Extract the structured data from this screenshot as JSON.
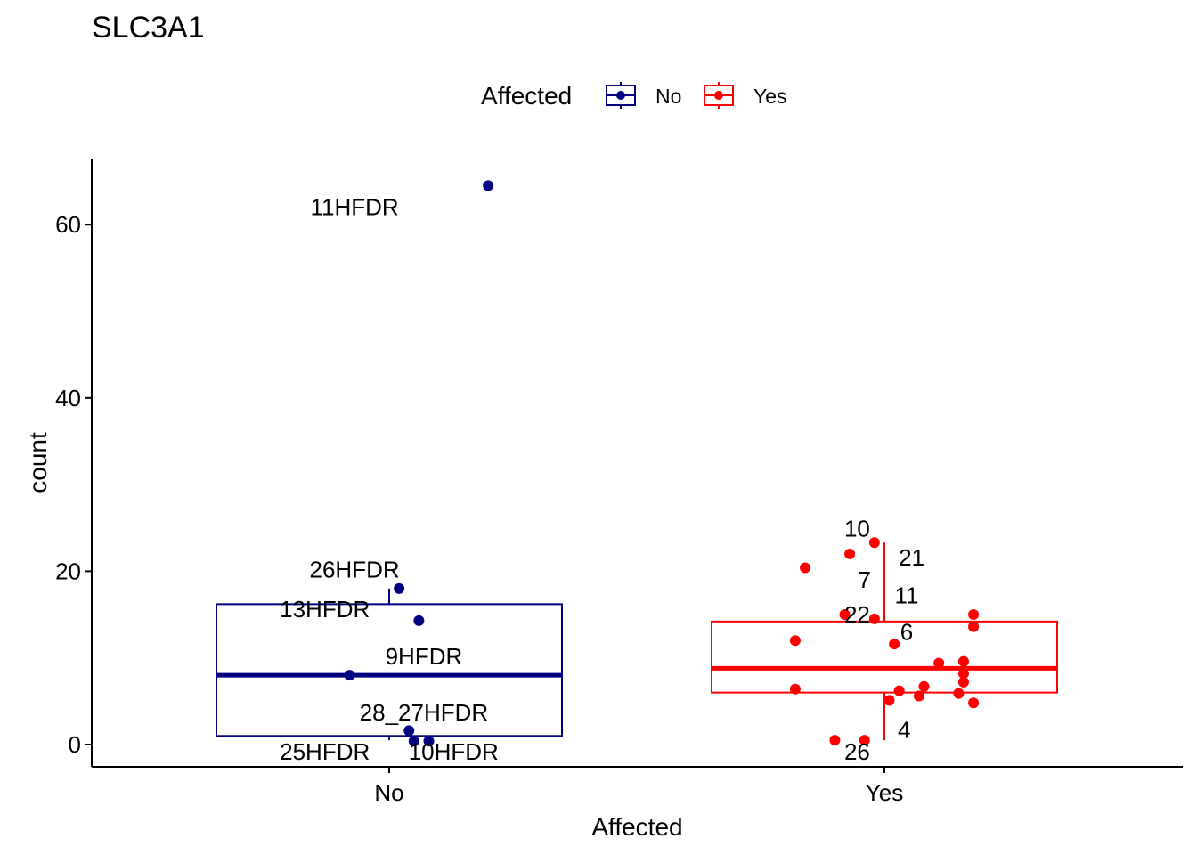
{
  "chart_data": {
    "type": "box",
    "title": "SLC3A1",
    "xlabel": "Affected",
    "ylabel": "count",
    "categories": [
      "No",
      "Yes"
    ],
    "ylim": [
      -2.5,
      67.5
    ],
    "yticks": [
      0,
      20,
      40,
      60
    ],
    "legend": {
      "title": "Affected",
      "position": "top",
      "entries": [
        {
          "label": "No",
          "color": "#000080"
        },
        {
          "label": "Yes",
          "color": "#ff0000"
        }
      ]
    },
    "boxes": [
      {
        "category": "No",
        "color": "#000080",
        "min": 0.5,
        "q1": 1.0,
        "median": 8.0,
        "q3": 16.2,
        "max": 18.0
      },
      {
        "category": "Yes",
        "color": "#ff0000",
        "min": 0.5,
        "q1": 6.0,
        "median": 8.8,
        "q3": 14.2,
        "max": 23.3
      }
    ],
    "points": [
      {
        "group": "No",
        "jitter": 0.2,
        "y": 64.5
      },
      {
        "group": "No",
        "jitter": 0.02,
        "y": 18.0
      },
      {
        "group": "No",
        "jitter": 0.06,
        "y": 14.3
      },
      {
        "group": "No",
        "jitter": -0.08,
        "y": 8.0
      },
      {
        "group": "No",
        "jitter": 0.04,
        "y": 1.6
      },
      {
        "group": "No",
        "jitter": 0.05,
        "y": 0.4
      },
      {
        "group": "No",
        "jitter": 0.08,
        "y": 0.4
      },
      {
        "group": "Yes",
        "jitter": -0.02,
        "y": 23.3
      },
      {
        "group": "Yes",
        "jitter": -0.07,
        "y": 22.0
      },
      {
        "group": "Yes",
        "jitter": -0.16,
        "y": 20.4
      },
      {
        "group": "Yes",
        "jitter": -0.08,
        "y": 15.0
      },
      {
        "group": "Yes",
        "jitter": -0.02,
        "y": 14.5
      },
      {
        "group": "Yes",
        "jitter": 0.18,
        "y": 15.0
      },
      {
        "group": "Yes",
        "jitter": 0.18,
        "y": 13.6
      },
      {
        "group": "Yes",
        "jitter": -0.18,
        "y": 12.0
      },
      {
        "group": "Yes",
        "jitter": 0.02,
        "y": 11.6
      },
      {
        "group": "Yes",
        "jitter": 0.11,
        "y": 9.4
      },
      {
        "group": "Yes",
        "jitter": 0.16,
        "y": 9.6
      },
      {
        "group": "Yes",
        "jitter": 0.16,
        "y": 8.2
      },
      {
        "group": "Yes",
        "jitter": 0.16,
        "y": 7.2
      },
      {
        "group": "Yes",
        "jitter": 0.08,
        "y": 6.7
      },
      {
        "group": "Yes",
        "jitter": -0.18,
        "y": 6.4
      },
      {
        "group": "Yes",
        "jitter": 0.03,
        "y": 6.2
      },
      {
        "group": "Yes",
        "jitter": 0.07,
        "y": 5.6
      },
      {
        "group": "Yes",
        "jitter": 0.15,
        "y": 5.9
      },
      {
        "group": "Yes",
        "jitter": 0.01,
        "y": 5.1
      },
      {
        "group": "Yes",
        "jitter": 0.18,
        "y": 4.8
      },
      {
        "group": "Yes",
        "jitter": -0.1,
        "y": 0.5
      },
      {
        "group": "Yes",
        "jitter": -0.04,
        "y": 0.5
      }
    ],
    "labels": [
      {
        "text": "11HFDR",
        "group": "No",
        "dx": -0.07,
        "y": 62.0
      },
      {
        "text": "26HFDR",
        "group": "No",
        "dx": -0.07,
        "y": 20.2
      },
      {
        "text": "13HFDR",
        "group": "No",
        "dx": -0.13,
        "y": 15.6
      },
      {
        "text": "9HFDR",
        "group": "No",
        "dx": 0.07,
        "y": 10.2
      },
      {
        "text": "28_27HFDR",
        "group": "No",
        "dx": 0.07,
        "y": 3.7
      },
      {
        "text": "25HFDR",
        "group": "No",
        "dx": -0.13,
        "y": -0.8
      },
      {
        "text": "10HFDR",
        "group": "No",
        "dx": 0.13,
        "y": -0.8
      },
      {
        "text": "10",
        "group": "Yes",
        "dx": -0.055,
        "y": 24.9
      },
      {
        "text": "21",
        "group": "Yes",
        "dx": 0.055,
        "y": 21.6
      },
      {
        "text": "7",
        "group": "Yes",
        "dx": -0.04,
        "y": 19.0
      },
      {
        "text": "11",
        "group": "Yes",
        "dx": 0.045,
        "y": 17.2
      },
      {
        "text": "22",
        "group": "Yes",
        "dx": -0.055,
        "y": 15.0
      },
      {
        "text": "6",
        "group": "Yes",
        "dx": 0.045,
        "y": 13.0
      },
      {
        "text": "4",
        "group": "Yes",
        "dx": 0.04,
        "y": 1.7
      },
      {
        "text": "26",
        "group": "Yes",
        "dx": -0.055,
        "y": -0.8
      }
    ]
  }
}
